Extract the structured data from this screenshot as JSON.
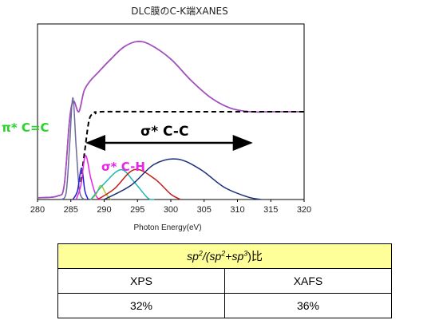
{
  "chart_data": {
    "type": "line",
    "title": "DLC膜のC-K端XANES",
    "xlabel": "Photon Energy(eV)",
    "ylabel": "",
    "xlim": [
      280,
      320
    ],
    "x_ticks": [
      "280",
      "285",
      "290",
      "295",
      "300",
      "305",
      "310",
      "315",
      "320"
    ],
    "ylim": [
      0,
      1
    ],
    "grid": false,
    "legend": "none",
    "series": [
      {
        "color": "#c0304a",
        "style": "solid",
        "role": "measured",
        "points": [
          [
            280,
            0.01
          ],
          [
            283,
            0.02
          ],
          [
            284,
            0.08
          ],
          [
            284.8,
            0.45
          ],
          [
            285.4,
            0.56
          ],
          [
            286.2,
            0.5
          ],
          [
            287,
            0.62
          ],
          [
            288,
            0.68
          ],
          [
            289,
            0.72
          ],
          [
            291,
            0.8
          ],
          [
            293,
            0.87
          ],
          [
            295,
            0.9
          ],
          [
            297,
            0.88
          ],
          [
            300,
            0.8
          ],
          [
            303,
            0.68
          ],
          [
            306,
            0.58
          ],
          [
            309,
            0.52
          ],
          [
            312,
            0.5
          ],
          [
            315,
            0.5
          ],
          [
            320,
            0.5
          ]
        ]
      },
      {
        "color": "#9f4fc8",
        "style": "solid",
        "role": "fit",
        "points": [
          [
            280,
            0.01
          ],
          [
            283,
            0.02
          ],
          [
            284,
            0.08
          ],
          [
            284.8,
            0.45
          ],
          [
            285.4,
            0.56
          ],
          [
            286.2,
            0.5
          ],
          [
            287,
            0.62
          ],
          [
            288,
            0.68
          ],
          [
            289,
            0.72
          ],
          [
            291,
            0.8
          ],
          [
            293,
            0.87
          ],
          [
            295,
            0.9
          ],
          [
            297,
            0.88
          ],
          [
            300,
            0.8
          ],
          [
            303,
            0.68
          ],
          [
            306,
            0.58
          ],
          [
            309,
            0.52
          ],
          [
            312,
            0.5
          ],
          [
            315,
            0.5
          ],
          [
            320,
            0.5
          ]
        ]
      },
      {
        "color": "#000000",
        "style": "dashed",
        "role": "step edge",
        "points": [
          [
            286.5,
            0.1
          ],
          [
            287.1,
            0.28
          ],
          [
            287.8,
            0.46
          ],
          [
            288.7,
            0.49
          ],
          [
            289.6,
            0.5
          ],
          [
            300,
            0.5
          ],
          [
            320,
            0.5
          ]
        ]
      },
      {
        "color": "#6a6a9a",
        "style": "solid",
        "role": "π* C=C peak",
        "points": [
          [
            283.5,
            0
          ],
          [
            284.3,
            0.04
          ],
          [
            284.8,
            0.3
          ],
          [
            285.3,
            0.58
          ],
          [
            285.8,
            0.3
          ],
          [
            286.3,
            0.05
          ],
          [
            287,
            0
          ]
        ]
      },
      {
        "color": "#1f1fd6",
        "style": "solid",
        "role": "peak",
        "points": [
          [
            285.3,
            0
          ],
          [
            286,
            0.05
          ],
          [
            286.6,
            0.18
          ],
          [
            287.1,
            0.05
          ],
          [
            287.6,
            0
          ]
        ]
      },
      {
        "color": "#e626e6",
        "style": "solid",
        "role": "σ* C-H peak",
        "points": [
          [
            285.8,
            0
          ],
          [
            286.5,
            0.08
          ],
          [
            287.2,
            0.25
          ],
          [
            288,
            0.12
          ],
          [
            288.8,
            0.02
          ],
          [
            289.5,
            0
          ]
        ]
      },
      {
        "color": "#a8c828",
        "style": "solid",
        "role": "peak",
        "points": [
          [
            288,
            0
          ],
          [
            288.8,
            0.03
          ],
          [
            289.5,
            0.08
          ],
          [
            290.3,
            0.03
          ],
          [
            291,
            0
          ]
        ]
      },
      {
        "color": "#1cb8b0",
        "style": "solid",
        "role": "peak",
        "points": [
          [
            288,
            0
          ],
          [
            290,
            0.09
          ],
          [
            292.5,
            0.17
          ],
          [
            294.5,
            0.1
          ],
          [
            296.5,
            0.01
          ],
          [
            297.5,
            0
          ]
        ]
      },
      {
        "color": "#c21f1f",
        "style": "solid",
        "role": "peak",
        "points": [
          [
            289,
            0
          ],
          [
            291.5,
            0.06
          ],
          [
            294.5,
            0.17
          ],
          [
            297.5,
            0.12
          ],
          [
            300,
            0.03
          ],
          [
            301.5,
            0
          ]
        ]
      },
      {
        "color": "#1c2f78",
        "style": "solid",
        "role": "σ* C-C peak",
        "points": [
          [
            290,
            0
          ],
          [
            294,
            0.08
          ],
          [
            297.5,
            0.2
          ],
          [
            301,
            0.23
          ],
          [
            304.5,
            0.17
          ],
          [
            308,
            0.07
          ],
          [
            311.5,
            0.015
          ],
          [
            313.5,
            0
          ]
        ]
      }
    ],
    "annotations": {
      "pi_cc": "π* C=C",
      "sigma_ch": "σ* C-H",
      "sigma_cc": "σ* C-C"
    },
    "arrow_range": [
      287.5,
      312
    ],
    "colors": {
      "pi_cc": "#2bd42b",
      "sigma_ch": "#e626e6",
      "sigma_cc": "#000000"
    }
  },
  "table": {
    "header": {
      "sp_a": "sp",
      "exp_a": "2",
      "mid": "/(",
      "sp_b": "sp",
      "exp_b": "2",
      "plus": "+",
      "sp_c": "sp",
      "exp_c": "3",
      "close": ")比"
    },
    "columns": [
      "XPS",
      "XAFS"
    ],
    "values": [
      "32%",
      "36%"
    ],
    "header_color": "#ffff9a"
  }
}
